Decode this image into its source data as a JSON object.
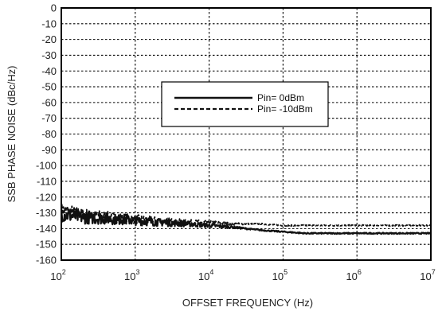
{
  "chart_data": {
    "type": "line",
    "title": "",
    "xlabel": "OFFSET FREQUENCY (Hz)",
    "ylabel": "SSB PHASE NOISE (dBc/Hz)",
    "xscale": "log",
    "xlim": [
      100,
      10000000
    ],
    "ylim": [
      -160,
      0
    ],
    "grid": true,
    "grid_style": "dotted",
    "legend_position": "center",
    "x_ticks": [
      {
        "base": "10",
        "exp": "2"
      },
      {
        "base": "10",
        "exp": "3"
      },
      {
        "base": "10",
        "exp": "4"
      },
      {
        "base": "10",
        "exp": "5"
      },
      {
        "base": "10",
        "exp": "6"
      },
      {
        "base": "10",
        "exp": "7"
      }
    ],
    "y_ticks": [
      "0",
      "-10",
      "-20",
      "-30",
      "-40",
      "-50",
      "-60",
      "-70",
      "-80",
      "-90",
      "-100",
      "-110",
      "-120",
      "-130",
      "-140",
      "-150",
      "-160"
    ],
    "series": [
      {
        "name": "Pin= 0dBm",
        "style": "solid",
        "color": "#111111",
        "x": [
          100,
          200,
          500,
          1000,
          2000,
          5000,
          10000,
          20000,
          50000,
          100000,
          200000,
          500000,
          1000000,
          2000000,
          5000000,
          10000000
        ],
        "y": [
          -131,
          -133,
          -134,
          -135,
          -136,
          -137,
          -138,
          -139,
          -141,
          -142,
          -143,
          -143,
          -143,
          -143,
          -143,
          -143
        ]
      },
      {
        "name": "Pin= -10dBm",
        "style": "dashed",
        "color": "#111111",
        "x": [
          100,
          200,
          500,
          1000,
          2000,
          5000,
          10000,
          20000,
          50000,
          100000,
          200000,
          500000,
          1000000,
          2000000,
          5000000,
          10000000
        ],
        "y": [
          -128,
          -131,
          -133,
          -134,
          -135,
          -136,
          -136,
          -137,
          -137,
          -138,
          -138,
          -138,
          -138,
          -138,
          -138,
          -138
        ]
      }
    ]
  }
}
